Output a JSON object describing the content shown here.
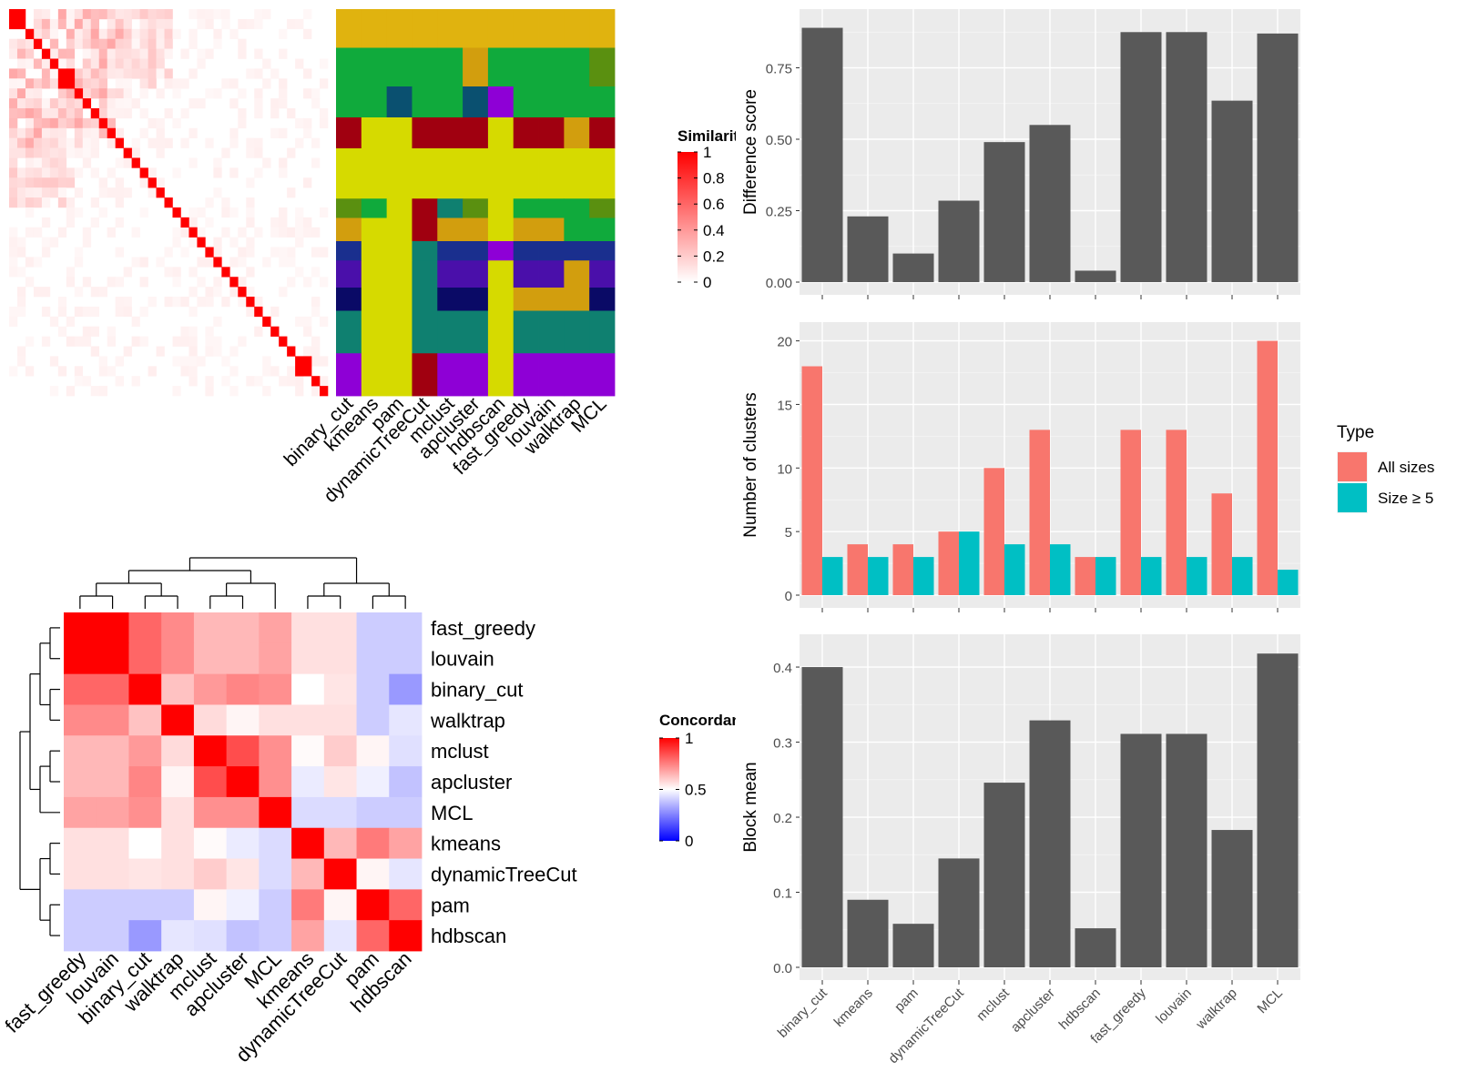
{
  "methods": [
    "binary_cut",
    "kmeans",
    "pam",
    "dynamicTreeCut",
    "mclust",
    "apcluster",
    "hdbscan",
    "fast_greedy",
    "louvain",
    "walktrap",
    "MCL"
  ],
  "colors": {
    "bar_gray": "#595959",
    "panel_bg": "#EBEBEB",
    "grid": "#FFFFFF",
    "all_sizes": "#F8766D",
    "size5": "#00BFC4",
    "heat_red": "#FF0000",
    "heat_white": "#FFFFFF",
    "heat_blue": "#0000FF"
  },
  "chart_data": [
    {
      "type": "heatmap",
      "name": "similarity-heatmap",
      "legend_title": "Similarity",
      "legend_ticks": [
        "0",
        "0.2",
        "0.4",
        "0.6",
        "0.8",
        "1"
      ],
      "block_sizes": [
        2,
        1,
        1,
        1,
        1,
        2,
        1,
        1,
        1,
        1,
        1,
        1,
        1,
        1,
        1,
        1,
        1,
        1,
        1,
        1,
        1,
        1,
        1,
        1,
        1,
        1,
        1,
        1,
        1,
        1,
        1,
        1,
        1,
        2,
        1,
        1
      ],
      "n": 40
    },
    {
      "type": "heatmap",
      "name": "cluster-membership-panel",
      "columns": [
        "binary_cut",
        "kmeans",
        "pam",
        "dynamicTreeCut",
        "mclust",
        "apcluster",
        "hdbscan",
        "fast_greedy",
        "louvain",
        "walktrap",
        "MCL"
      ],
      "palette": [
        "#E0B30F",
        "#10AA3C",
        "#0A5070",
        "#A00010",
        "#D6DA00",
        "#1A2F8E",
        "#4A0FAA",
        "#0A0A66",
        "#0F8070",
        "#8E00D6",
        "#D29E0E",
        "#5A9010"
      ]
    },
    {
      "type": "heatmap",
      "name": "concordance-heatmap",
      "legend_title": "Concordance",
      "legend_ticks": [
        "0",
        "0.5",
        "1"
      ],
      "row_labels": [
        "fast_greedy",
        "louvain",
        "binary_cut",
        "walktrap",
        "mclust",
        "apcluster",
        "MCL",
        "kmeans",
        "dynamicTreeCut",
        "pam",
        "hdbscan"
      ],
      "col_labels": [
        "fast_greedy",
        "louvain",
        "binary_cut",
        "walktrap",
        "mclust",
        "apcluster",
        "MCL",
        "kmeans",
        "dynamicTreeCut",
        "pam",
        "hdbscan"
      ],
      "values": [
        [
          1.0,
          1.0,
          0.8,
          0.73,
          0.64,
          0.64,
          0.68,
          0.56,
          0.56,
          0.4,
          0.4
        ],
        [
          1.0,
          1.0,
          0.8,
          0.73,
          0.64,
          0.64,
          0.68,
          0.56,
          0.56,
          0.4,
          0.4
        ],
        [
          0.8,
          0.8,
          1.0,
          0.62,
          0.7,
          0.74,
          0.72,
          0.5,
          0.55,
          0.4,
          0.3
        ],
        [
          0.73,
          0.73,
          0.62,
          1.0,
          0.57,
          0.52,
          0.56,
          0.56,
          0.56,
          0.4,
          0.45
        ],
        [
          0.64,
          0.64,
          0.7,
          0.57,
          1.0,
          0.85,
          0.72,
          0.51,
          0.6,
          0.52,
          0.44
        ],
        [
          0.64,
          0.64,
          0.74,
          0.52,
          0.85,
          1.0,
          0.72,
          0.46,
          0.55,
          0.47,
          0.38
        ],
        [
          0.68,
          0.68,
          0.72,
          0.56,
          0.72,
          0.72,
          1.0,
          0.43,
          0.43,
          0.4,
          0.4
        ],
        [
          0.56,
          0.56,
          0.5,
          0.56,
          0.51,
          0.46,
          0.43,
          1.0,
          0.64,
          0.76,
          0.68
        ],
        [
          0.56,
          0.56,
          0.55,
          0.56,
          0.6,
          0.55,
          0.43,
          0.64,
          1.0,
          0.52,
          0.45
        ],
        [
          0.4,
          0.4,
          0.4,
          0.4,
          0.52,
          0.47,
          0.4,
          0.76,
          0.52,
          1.0,
          0.8
        ],
        [
          0.4,
          0.4,
          0.3,
          0.45,
          0.44,
          0.38,
          0.4,
          0.68,
          0.45,
          0.8,
          1.0
        ]
      ]
    },
    {
      "type": "bar",
      "name": "difference-score-chart",
      "categories": [
        "binary_cut",
        "kmeans",
        "pam",
        "dynamicTreeCut",
        "mclust",
        "apcluster",
        "hdbscan",
        "fast_greedy",
        "louvain",
        "walktrap",
        "MCL"
      ],
      "values": [
        0.89,
        0.23,
        0.1,
        0.285,
        0.49,
        0.55,
        0.04,
        0.875,
        0.875,
        0.635,
        0.87
      ],
      "ylabel": "Difference score",
      "ylim": [
        0,
        0.93
      ],
      "yticks": [
        "0.00",
        "0.25",
        "0.50",
        "0.75"
      ],
      "grid": true
    },
    {
      "type": "bar",
      "name": "number-of-clusters-chart",
      "categories": [
        "binary_cut",
        "kmeans",
        "pam",
        "dynamicTreeCut",
        "mclust",
        "apcluster",
        "hdbscan",
        "fast_greedy",
        "louvain",
        "walktrap",
        "MCL"
      ],
      "series": [
        {
          "name": "All sizes",
          "values": [
            18,
            4,
            4,
            5,
            10,
            13,
            3,
            13,
            13,
            8,
            20
          ]
        },
        {
          "name": "Size ≥ 5",
          "values": [
            3,
            3,
            3,
            5,
            4,
            4,
            3,
            3,
            3,
            3,
            2
          ]
        }
      ],
      "ylabel": "Number of clusters",
      "ylim": [
        0,
        20.9
      ],
      "yticks": [
        "0",
        "5",
        "10",
        "15",
        "20"
      ],
      "legend_title": "Type",
      "legend_position": "right",
      "grid": true
    },
    {
      "type": "bar",
      "name": "block-mean-chart",
      "categories": [
        "binary_cut",
        "kmeans",
        "pam",
        "dynamicTreeCut",
        "mclust",
        "apcluster",
        "hdbscan",
        "fast_greedy",
        "louvain",
        "walktrap",
        "MCL"
      ],
      "values": [
        0.4,
        0.09,
        0.058,
        0.145,
        0.246,
        0.329,
        0.052,
        0.311,
        0.311,
        0.183,
        0.418
      ],
      "ylabel": "Block mean",
      "ylim": [
        0,
        0.434
      ],
      "yticks": [
        "0.0",
        "0.1",
        "0.2",
        "0.3",
        "0.4"
      ],
      "grid": true
    }
  ]
}
